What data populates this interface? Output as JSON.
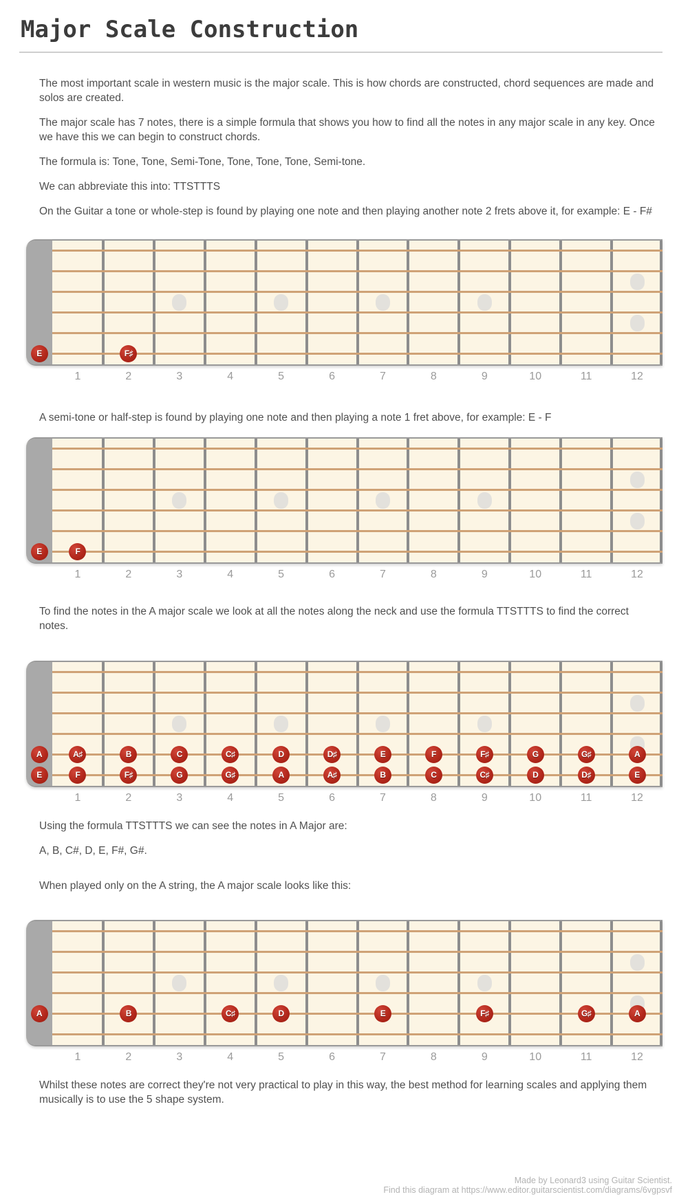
{
  "page": {
    "title": "Major Scale Construction",
    "paragraphs": {
      "intro_1": "The most important scale in western music is the major scale. This is how chords are constructed, chord sequences are made and\nsolos are created.",
      "intro_2": "The major scale has 7 notes, there is a simple formula that shows you how to find all the notes in any major scale in any key. Once\nwe have this we can begin to construct chords.",
      "formula": "The formula is: Tone, Tone, Semi-Tone, Tone, Tone, Tone, Semi-tone.",
      "abbreviation": "We can abbreviate this into: TTSTTTS",
      "tone_example": "On the Guitar a tone or whole-step is found by playing one note and then playing another note 2 frets above it, for example: E - F#",
      "semitone_example": "A semi-tone or half-step is found by playing one note and then playing a note 1 fret above, for example: E - F",
      "find_notes": "To find the notes in the A major scale we look at all the notes along the neck and use the formula TTSTTTS to find the correct\nnotes.",
      "using_formula": "Using the formula TTSTTTS we can see the notes in A Major are:",
      "notes_list": "A, B, C#, D, E, F#, G#.",
      "a_string_only": "When played only on the A string, the A major scale looks like this:",
      "conclusion": "Whilst these notes are correct they're not very practical to play in this way, the best method for learning scales and applying them\nmusically is to use the 5 shape system."
    },
    "footer": {
      "made_by": "Made by Leonard3 using Guitar Scientist.",
      "find_at": "Find this diagram at https://www.editor.guitarscientist.com/diagrams/6vgpsvf"
    }
  },
  "colors": {
    "board_background": "#fcf5e4",
    "nut": "#a9a9a9",
    "fret_line": "#8d8d8d",
    "string": "#cfa276",
    "inlay_dot": "#e3e1dc",
    "note_marker": "#b3281c",
    "marker_text": "#ffffff",
    "body_text": "#505050",
    "fret_number_text": "#9b9b9b",
    "footer_text": "#b3b3b3"
  },
  "fretboard_defaults": {
    "strings": 6,
    "frets": 12,
    "fret_numbers": [
      "1",
      "2",
      "3",
      "4",
      "5",
      "6",
      "7",
      "8",
      "9",
      "10",
      "11",
      "12"
    ],
    "single_dot_frets": [
      3,
      5,
      7,
      9
    ],
    "double_dot_frets": [
      12
    ]
  },
  "diagrams": [
    {
      "id": "tone-example",
      "markers": [
        {
          "string": 6,
          "fret": 0,
          "label": "E"
        },
        {
          "string": 6,
          "fret": 2,
          "label": "F♯"
        }
      ]
    },
    {
      "id": "semitone-example",
      "markers": [
        {
          "string": 6,
          "fret": 0,
          "label": "E"
        },
        {
          "string": 6,
          "fret": 1,
          "label": "F"
        }
      ]
    },
    {
      "id": "a-major-all-notes",
      "markers": [
        {
          "string": 5,
          "fret": 0,
          "label": "A"
        },
        {
          "string": 5,
          "fret": 1,
          "label": "A♯"
        },
        {
          "string": 5,
          "fret": 2,
          "label": "B"
        },
        {
          "string": 5,
          "fret": 3,
          "label": "C"
        },
        {
          "string": 5,
          "fret": 4,
          "label": "C♯"
        },
        {
          "string": 5,
          "fret": 5,
          "label": "D"
        },
        {
          "string": 5,
          "fret": 6,
          "label": "D♯"
        },
        {
          "string": 5,
          "fret": 7,
          "label": "E"
        },
        {
          "string": 5,
          "fret": 8,
          "label": "F"
        },
        {
          "string": 5,
          "fret": 9,
          "label": "F♯"
        },
        {
          "string": 5,
          "fret": 10,
          "label": "G"
        },
        {
          "string": 5,
          "fret": 11,
          "label": "G♯"
        },
        {
          "string": 5,
          "fret": 12,
          "label": "A"
        },
        {
          "string": 6,
          "fret": 0,
          "label": "E"
        },
        {
          "string": 6,
          "fret": 1,
          "label": "F"
        },
        {
          "string": 6,
          "fret": 2,
          "label": "F♯"
        },
        {
          "string": 6,
          "fret": 3,
          "label": "G"
        },
        {
          "string": 6,
          "fret": 4,
          "label": "G♯"
        },
        {
          "string": 6,
          "fret": 5,
          "label": "A"
        },
        {
          "string": 6,
          "fret": 6,
          "label": "A♯"
        },
        {
          "string": 6,
          "fret": 7,
          "label": "B"
        },
        {
          "string": 6,
          "fret": 8,
          "label": "C"
        },
        {
          "string": 6,
          "fret": 9,
          "label": "C♯"
        },
        {
          "string": 6,
          "fret": 10,
          "label": "D"
        },
        {
          "string": 6,
          "fret": 11,
          "label": "D♯"
        },
        {
          "string": 6,
          "fret": 12,
          "label": "E"
        }
      ]
    },
    {
      "id": "a-major-a-string",
      "markers": [
        {
          "string": 5,
          "fret": 0,
          "label": "A"
        },
        {
          "string": 5,
          "fret": 2,
          "label": "B"
        },
        {
          "string": 5,
          "fret": 4,
          "label": "C♯"
        },
        {
          "string": 5,
          "fret": 5,
          "label": "D"
        },
        {
          "string": 5,
          "fret": 7,
          "label": "E"
        },
        {
          "string": 5,
          "fret": 9,
          "label": "F♯"
        },
        {
          "string": 5,
          "fret": 11,
          "label": "G♯"
        },
        {
          "string": 5,
          "fret": 12,
          "label": "A"
        }
      ]
    }
  ]
}
